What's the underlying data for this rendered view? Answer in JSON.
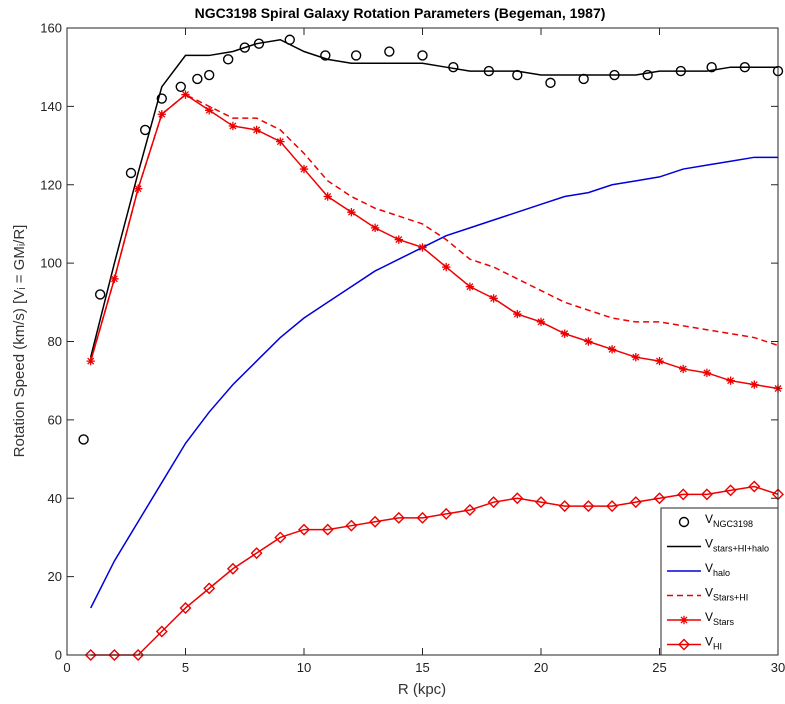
{
  "chart_data": {
    "type": "line",
    "title": "NGC3198 Spiral Galaxy Rotation Parameters (Begeman, 1987)",
    "xlabel": "R (kpc)",
    "ylabel": "Rotation Speed (km/s)    [Vᵢ = GMᵢ/R]",
    "xlim": [
      0,
      30
    ],
    "ylim": [
      0,
      160
    ],
    "xticks": [
      0,
      5,
      10,
      15,
      20,
      25,
      30
    ],
    "yticks": [
      0,
      20,
      40,
      60,
      80,
      100,
      120,
      140,
      160
    ],
    "grid": false,
    "legend_position": "bottom-right",
    "series": [
      {
        "name": "V_NGC3198",
        "label_main": "V",
        "label_sub": "NGC3198",
        "style": "markers",
        "marker": "circle",
        "color": "#000000",
        "x": [
          0.7,
          1.4,
          2.7,
          3.3,
          4.0,
          4.8,
          5.5,
          6.0,
          6.8,
          7.5,
          8.1,
          9.4,
          10.9,
          12.2,
          13.6,
          15.0,
          16.3,
          17.8,
          19.0,
          20.4,
          21.8,
          23.1,
          24.5,
          25.9,
          27.2,
          28.6,
          30.0
        ],
        "y": [
          55,
          92,
          123,
          134,
          142,
          145,
          147,
          148,
          152,
          155,
          156,
          157,
          153,
          153,
          154,
          153,
          150,
          149,
          148,
          146,
          147,
          148,
          148,
          149,
          150,
          150,
          149
        ]
      },
      {
        "name": "V_stars+HI+halo",
        "label_main": "V",
        "label_sub": "stars+HI+halo",
        "style": "line",
        "color": "#000000",
        "x": [
          1,
          2,
          3,
          4,
          5,
          6,
          7,
          8,
          9,
          10,
          11,
          12,
          13,
          14,
          15,
          16,
          17,
          18,
          19,
          20,
          21,
          22,
          23,
          24,
          25,
          26,
          27,
          28,
          29,
          30
        ],
        "y": [
          76,
          100,
          123,
          145,
          153,
          153,
          154,
          156,
          157,
          154,
          152,
          151,
          151,
          151,
          151,
          150,
          149,
          149,
          149,
          148,
          148,
          148,
          148,
          148,
          149,
          149,
          149,
          150,
          150,
          150
        ]
      },
      {
        "name": "V_halo",
        "label_main": "V",
        "label_sub": "halo",
        "style": "line",
        "color": "#0000dd",
        "x": [
          1,
          2,
          3,
          4,
          5,
          6,
          7,
          8,
          9,
          10,
          11,
          12,
          13,
          14,
          15,
          16,
          17,
          18,
          19,
          20,
          21,
          22,
          23,
          24,
          25,
          26,
          27,
          28,
          29,
          30
        ],
        "y": [
          12,
          24,
          34,
          44,
          54,
          62,
          69,
          75,
          81,
          86,
          90,
          94,
          98,
          101,
          104,
          107,
          109,
          111,
          113,
          115,
          117,
          118,
          120,
          121,
          122,
          124,
          125,
          126,
          127,
          127
        ]
      },
      {
        "name": "V_Stars+HI",
        "label_main": "V",
        "label_sub": "Stars+HI",
        "style": "dashed",
        "color": "#ee0000",
        "x": [
          1,
          2,
          3,
          4,
          5,
          6,
          7,
          8,
          9,
          10,
          11,
          12,
          13,
          14,
          15,
          16,
          17,
          18,
          19,
          20,
          21,
          22,
          23,
          24,
          25,
          26,
          27,
          28,
          29,
          30
        ],
        "y": [
          75,
          96,
          119,
          138,
          143,
          140,
          137,
          137,
          134,
          128,
          121,
          117,
          114,
          112,
          110,
          106,
          101,
          99,
          96,
          93,
          90,
          88,
          86,
          85,
          85,
          84,
          83,
          82,
          81,
          79
        ]
      },
      {
        "name": "V_Stars",
        "label_main": "V",
        "label_sub": "Stars",
        "style": "line-markers",
        "marker": "asterisk",
        "color": "#ee0000",
        "x": [
          1,
          2,
          3,
          4,
          5,
          6,
          7,
          8,
          9,
          10,
          11,
          12,
          13,
          14,
          15,
          16,
          17,
          18,
          19,
          20,
          21,
          22,
          23,
          24,
          25,
          26,
          27,
          28,
          29,
          30
        ],
        "y": [
          75,
          96,
          119,
          138,
          143,
          139,
          135,
          134,
          131,
          124,
          117,
          113,
          109,
          106,
          104,
          99,
          94,
          91,
          87,
          85,
          82,
          80,
          78,
          76,
          75,
          73,
          72,
          70,
          69,
          68
        ]
      },
      {
        "name": "V_HI",
        "label_main": "V",
        "label_sub": "HI",
        "style": "line-markers",
        "marker": "diamond",
        "color": "#ee0000",
        "x": [
          1,
          2,
          3,
          4,
          5,
          6,
          7,
          8,
          9,
          10,
          11,
          12,
          13,
          14,
          15,
          16,
          17,
          18,
          19,
          20,
          21,
          22,
          23,
          24,
          25,
          26,
          27,
          28,
          29,
          30
        ],
        "y": [
          0,
          0,
          0,
          6,
          12,
          17,
          22,
          26,
          30,
          32,
          32,
          33,
          34,
          35,
          35,
          36,
          37,
          39,
          40,
          39,
          38,
          38,
          38,
          39,
          40,
          41,
          41,
          42,
          43,
          41
        ]
      }
    ]
  }
}
